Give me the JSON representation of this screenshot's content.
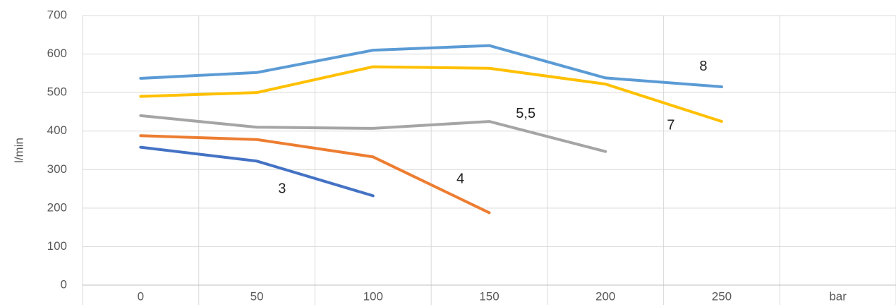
{
  "chart_data": {
    "type": "line",
    "y_label": "l/min",
    "categories": [
      "0",
      "50",
      "100",
      "150",
      "200",
      "250",
      "bar"
    ],
    "series": [
      {
        "name": "3",
        "color": "#4472c4",
        "values": [
          358,
          322,
          232,
          null,
          null,
          null,
          null
        ]
      },
      {
        "name": "4",
        "color": "#ed7d31",
        "values": [
          388,
          378,
          333,
          188,
          null,
          null,
          null
        ]
      },
      {
        "name": "5,5",
        "color": "#a5a5a5",
        "values": [
          440,
          410,
          407,
          425,
          347,
          null,
          null
        ]
      },
      {
        "name": "7",
        "color": "#ffc000",
        "values": [
          490,
          500,
          567,
          563,
          522,
          425,
          null
        ]
      },
      {
        "name": "8",
        "color": "#5b9bd5",
        "values": [
          537,
          552,
          610,
          622,
          538,
          515,
          null
        ]
      }
    ],
    "ylim": [
      0,
      700
    ],
    "yticks": [
      0,
      100,
      200,
      300,
      400,
      500,
      600,
      700
    ],
    "grid": true
  }
}
